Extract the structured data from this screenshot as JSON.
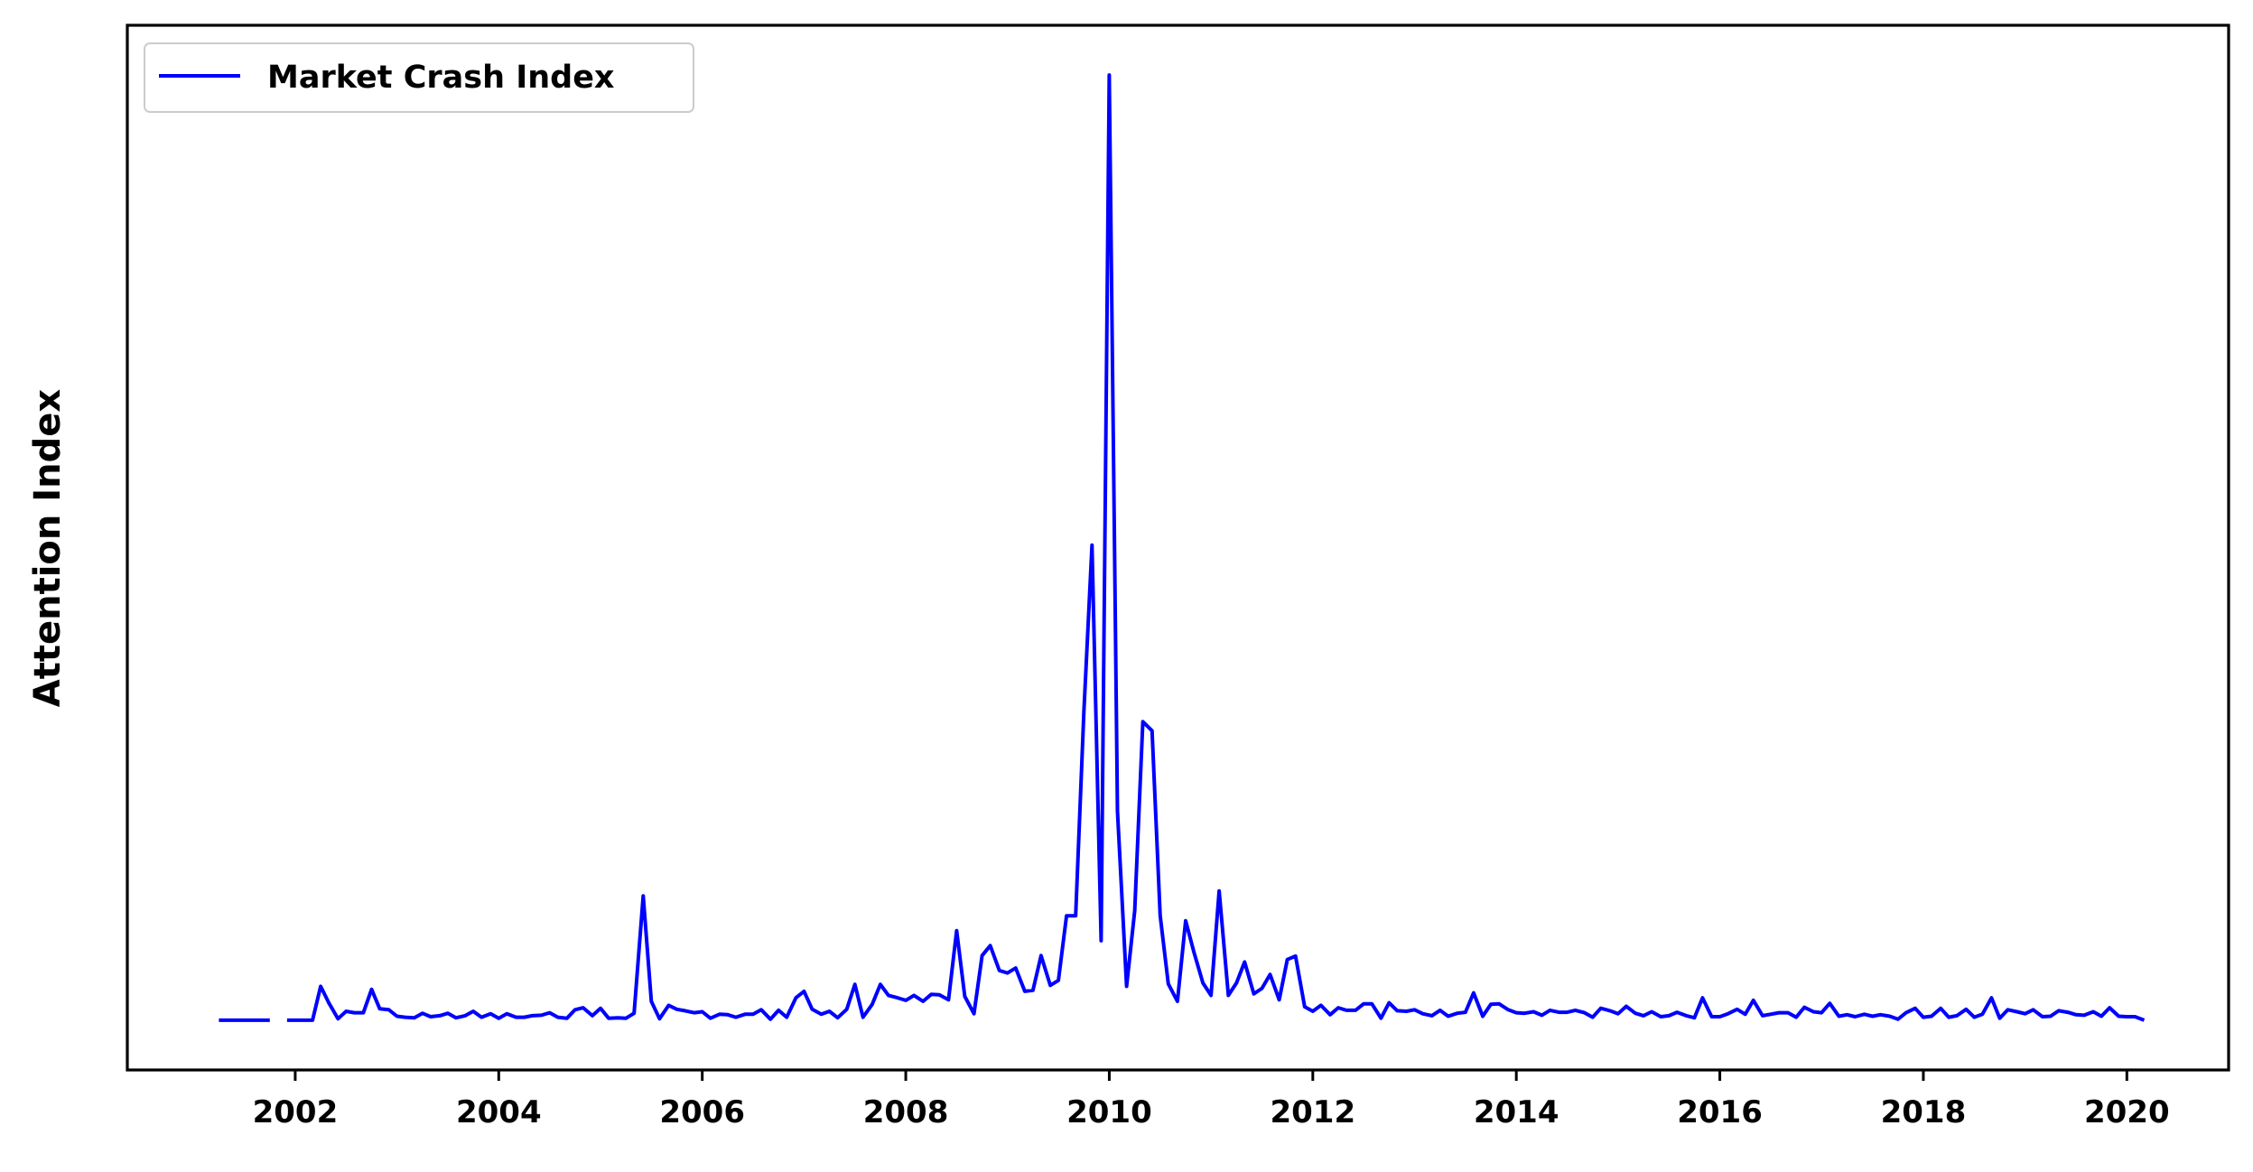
{
  "chart_data": {
    "type": "line",
    "title": "",
    "xlabel": "",
    "ylabel": "Attention Index",
    "xlim": [
      2000.35,
      2021.0
    ],
    "ylim": [
      -1.0,
      20.0
    ],
    "x_ticks": [
      2002,
      2004,
      2006,
      2008,
      2010,
      2012,
      2014,
      2016,
      2018,
      2020
    ],
    "x_tick_labels": [
      "2002",
      "2004",
      "2006",
      "2008",
      "2010",
      "2012",
      "2014",
      "2016",
      "2018",
      "2020"
    ],
    "y_ticks_shown": false,
    "grid": false,
    "legend": {
      "placement": "top-left"
    },
    "series": [
      {
        "name": "Market Crash Index",
        "color": "#0000ff",
        "points": [
          [
            2001.25,
            0
          ],
          [
            2001.33,
            0
          ],
          [
            2001.42,
            0
          ],
          [
            2001.5,
            0
          ],
          [
            2001.58,
            0
          ],
          [
            2001.67,
            0
          ],
          [
            2001.75,
            0
          ],
          [
            2001.83,
            null
          ],
          [
            2001.92,
            0
          ],
          [
            2002.0,
            0
          ],
          [
            2002.08,
            0
          ],
          [
            2002.17,
            0
          ],
          [
            2002.25,
            0.68
          ],
          [
            2002.33,
            0.35
          ],
          [
            2002.42,
            0.03
          ],
          [
            2002.5,
            0.18
          ],
          [
            2002.58,
            0.15
          ],
          [
            2002.67,
            0.15
          ],
          [
            2002.75,
            0.62
          ],
          [
            2002.83,
            0.23
          ],
          [
            2002.92,
            0.21
          ],
          [
            2003.0,
            0.08
          ],
          [
            2003.08,
            0.06
          ],
          [
            2003.17,
            0.05
          ],
          [
            2003.25,
            0.14
          ],
          [
            2003.33,
            0.07
          ],
          [
            2003.42,
            0.09
          ],
          [
            2003.5,
            0.14
          ],
          [
            2003.58,
            0.05
          ],
          [
            2003.67,
            0.09
          ],
          [
            2003.75,
            0.18
          ],
          [
            2003.83,
            0.06
          ],
          [
            2003.92,
            0.13
          ],
          [
            2004.0,
            0.04
          ],
          [
            2004.08,
            0.13
          ],
          [
            2004.17,
            0.06
          ],
          [
            2004.25,
            0.06
          ],
          [
            2004.33,
            0.09
          ],
          [
            2004.42,
            0.1
          ],
          [
            2004.5,
            0.15
          ],
          [
            2004.58,
            0.06
          ],
          [
            2004.67,
            0.04
          ],
          [
            2004.75,
            0.21
          ],
          [
            2004.83,
            0.25
          ],
          [
            2004.92,
            0.09
          ],
          [
            2005.0,
            0.24
          ],
          [
            2005.08,
            0.04
          ],
          [
            2005.17,
            0.05
          ],
          [
            2005.25,
            0.04
          ],
          [
            2005.33,
            0.14
          ],
          [
            2005.42,
            2.5
          ],
          [
            2005.5,
            0.38
          ],
          [
            2005.58,
            0.03
          ],
          [
            2005.67,
            0.3
          ],
          [
            2005.75,
            0.22
          ],
          [
            2005.83,
            0.19
          ],
          [
            2005.92,
            0.15
          ],
          [
            2006.0,
            0.17
          ],
          [
            2006.08,
            0.04
          ],
          [
            2006.17,
            0.12
          ],
          [
            2006.25,
            0.11
          ],
          [
            2006.33,
            0.06
          ],
          [
            2006.42,
            0.12
          ],
          [
            2006.5,
            0.12
          ],
          [
            2006.58,
            0.21
          ],
          [
            2006.67,
            0.02
          ],
          [
            2006.75,
            0.2
          ],
          [
            2006.83,
            0.06
          ],
          [
            2006.92,
            0.45
          ],
          [
            2007.0,
            0.58
          ],
          [
            2007.08,
            0.22
          ],
          [
            2007.17,
            0.12
          ],
          [
            2007.25,
            0.18
          ],
          [
            2007.33,
            0.05
          ],
          [
            2007.42,
            0.22
          ],
          [
            2007.5,
            0.72
          ],
          [
            2007.58,
            0.06
          ],
          [
            2007.67,
            0.32
          ],
          [
            2007.75,
            0.72
          ],
          [
            2007.83,
            0.5
          ],
          [
            2007.92,
            0.45
          ],
          [
            2008.0,
            0.4
          ],
          [
            2008.08,
            0.5
          ],
          [
            2008.17,
            0.38
          ],
          [
            2008.25,
            0.52
          ],
          [
            2008.33,
            0.51
          ],
          [
            2008.42,
            0.41
          ],
          [
            2008.5,
            1.8
          ],
          [
            2008.58,
            0.48
          ],
          [
            2008.67,
            0.13
          ],
          [
            2008.75,
            1.3
          ],
          [
            2008.83,
            1.5
          ],
          [
            2008.92,
            1.0
          ],
          [
            2009.0,
            0.95
          ],
          [
            2009.08,
            1.05
          ],
          [
            2009.17,
            0.58
          ],
          [
            2009.25,
            0.6
          ],
          [
            2009.33,
            1.3
          ],
          [
            2009.42,
            0.7
          ],
          [
            2009.5,
            0.8
          ],
          [
            2009.58,
            2.1
          ],
          [
            2009.67,
            2.1
          ],
          [
            2009.75,
            6.2
          ],
          [
            2009.83,
            9.55
          ],
          [
            2009.92,
            1.6
          ],
          [
            2010.0,
            19.0
          ],
          [
            2010.08,
            4.2
          ],
          [
            2010.17,
            0.68
          ],
          [
            2010.25,
            2.2
          ],
          [
            2010.33,
            6.0
          ],
          [
            2010.42,
            5.82
          ],
          [
            2010.5,
            2.1
          ],
          [
            2010.58,
            0.73
          ],
          [
            2010.67,
            0.38
          ],
          [
            2010.75,
            2.0
          ],
          [
            2010.83,
            1.38
          ],
          [
            2010.92,
            0.75
          ],
          [
            2011.0,
            0.5
          ],
          [
            2011.08,
            2.6
          ],
          [
            2011.17,
            0.5
          ],
          [
            2011.25,
            0.75
          ],
          [
            2011.33,
            1.17
          ],
          [
            2011.42,
            0.53
          ],
          [
            2011.5,
            0.64
          ],
          [
            2011.58,
            0.92
          ],
          [
            2011.67,
            0.41
          ],
          [
            2011.75,
            1.22
          ],
          [
            2011.83,
            1.29
          ],
          [
            2011.92,
            0.27
          ],
          [
            2012.0,
            0.18
          ],
          [
            2012.08,
            0.3
          ],
          [
            2012.17,
            0.11
          ],
          [
            2012.25,
            0.25
          ],
          [
            2012.33,
            0.2
          ],
          [
            2012.42,
            0.2
          ],
          [
            2012.5,
            0.33
          ],
          [
            2012.58,
            0.33
          ],
          [
            2012.67,
            0.04
          ],
          [
            2012.75,
            0.35
          ],
          [
            2012.83,
            0.19
          ],
          [
            2012.92,
            0.18
          ],
          [
            2013.0,
            0.21
          ],
          [
            2013.08,
            0.13
          ],
          [
            2013.17,
            0.09
          ],
          [
            2013.25,
            0.2
          ],
          [
            2013.33,
            0.08
          ],
          [
            2013.42,
            0.14
          ],
          [
            2013.5,
            0.16
          ],
          [
            2013.58,
            0.55
          ],
          [
            2013.67,
            0.08
          ],
          [
            2013.75,
            0.32
          ],
          [
            2013.83,
            0.33
          ],
          [
            2013.92,
            0.21
          ],
          [
            2014.0,
            0.15
          ],
          [
            2014.08,
            0.14
          ],
          [
            2014.17,
            0.17
          ],
          [
            2014.25,
            0.1
          ],
          [
            2014.33,
            0.2
          ],
          [
            2014.42,
            0.16
          ],
          [
            2014.5,
            0.16
          ],
          [
            2014.58,
            0.2
          ],
          [
            2014.67,
            0.15
          ],
          [
            2014.75,
            0.06
          ],
          [
            2014.83,
            0.24
          ],
          [
            2014.92,
            0.19
          ],
          [
            2015.0,
            0.13
          ],
          [
            2015.08,
            0.28
          ],
          [
            2015.17,
            0.14
          ],
          [
            2015.25,
            0.09
          ],
          [
            2015.33,
            0.17
          ],
          [
            2015.42,
            0.07
          ],
          [
            2015.5,
            0.09
          ],
          [
            2015.58,
            0.16
          ],
          [
            2015.67,
            0.09
          ],
          [
            2015.75,
            0.05
          ],
          [
            2015.83,
            0.45
          ],
          [
            2015.92,
            0.07
          ],
          [
            2016.0,
            0.07
          ],
          [
            2016.08,
            0.13
          ],
          [
            2016.17,
            0.22
          ],
          [
            2016.25,
            0.12
          ],
          [
            2016.33,
            0.4
          ],
          [
            2016.42,
            0.09
          ],
          [
            2016.5,
            0.12
          ],
          [
            2016.58,
            0.15
          ],
          [
            2016.67,
            0.15
          ],
          [
            2016.75,
            0.06
          ],
          [
            2016.83,
            0.26
          ],
          [
            2016.92,
            0.17
          ],
          [
            2017.0,
            0.15
          ],
          [
            2017.08,
            0.34
          ],
          [
            2017.17,
            0.08
          ],
          [
            2017.25,
            0.11
          ],
          [
            2017.33,
            0.07
          ],
          [
            2017.42,
            0.12
          ],
          [
            2017.5,
            0.08
          ],
          [
            2017.58,
            0.11
          ],
          [
            2017.67,
            0.08
          ],
          [
            2017.75,
            0.02
          ],
          [
            2017.83,
            0.15
          ],
          [
            2017.92,
            0.24
          ],
          [
            2018.0,
            0.06
          ],
          [
            2018.08,
            0.08
          ],
          [
            2018.17,
            0.24
          ],
          [
            2018.25,
            0.06
          ],
          [
            2018.33,
            0.09
          ],
          [
            2018.42,
            0.22
          ],
          [
            2018.5,
            0.06
          ],
          [
            2018.58,
            0.12
          ],
          [
            2018.67,
            0.45
          ],
          [
            2018.75,
            0.04
          ],
          [
            2018.83,
            0.21
          ],
          [
            2018.92,
            0.17
          ],
          [
            2019.0,
            0.13
          ],
          [
            2019.08,
            0.21
          ],
          [
            2019.17,
            0.07
          ],
          [
            2019.25,
            0.08
          ],
          [
            2019.33,
            0.19
          ],
          [
            2019.42,
            0.16
          ],
          [
            2019.5,
            0.11
          ],
          [
            2019.58,
            0.1
          ],
          [
            2019.67,
            0.17
          ],
          [
            2019.75,
            0.08
          ],
          [
            2019.83,
            0.25
          ],
          [
            2019.92,
            0.08
          ],
          [
            2020.0,
            0.07
          ],
          [
            2020.08,
            0.07
          ],
          [
            2020.17,
            0.0
          ]
        ]
      }
    ]
  }
}
